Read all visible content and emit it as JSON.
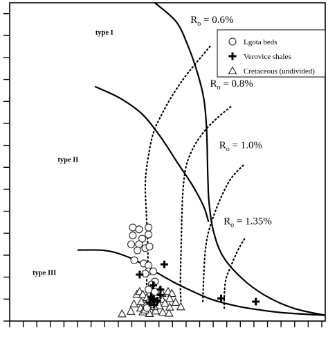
{
  "chart_data": {
    "type": "scatter",
    "title": "",
    "xlabel": "",
    "ylabel": "",
    "xlim": [
      0,
      100
    ],
    "ylim": [
      0,
      100
    ],
    "x_ticks": [
      0,
      4.3,
      8.6,
      12.9,
      17.2,
      21.5,
      25.8,
      30.1,
      34.4,
      38.7,
      43.0,
      47.3,
      51.6,
      55.9,
      60.2,
      64.5,
      68.8,
      73.1,
      77.4,
      81.7,
      86.0,
      90.3,
      94.6,
      98.9
    ],
    "y_ticks": [
      0,
      6.9,
      13.8,
      20.7,
      27.6,
      34.5,
      41.4,
      48.3,
      55.2,
      62.1,
      69.0,
      75.9,
      82.8,
      89.7,
      96.6
    ],
    "grid": false,
    "legend_position": "top-right",
    "legend": [
      {
        "label": "Lgota beds",
        "marker": "circle"
      },
      {
        "label": "Verovice shales",
        "marker": "cross"
      },
      {
        "label": "Cretaceous (undivided)",
        "marker": "triangle"
      }
    ],
    "region_labels": [
      {
        "text": "type I",
        "x": 30,
        "y": 90
      },
      {
        "text": "type II",
        "x": 18.5,
        "y": 50
      },
      {
        "text": "type III",
        "x": 11,
        "y": 14.5
      }
    ],
    "ro_labels": [
      {
        "main": "R",
        "sub": "o",
        "rest": " = 0.6%",
        "x": 57.3,
        "y": 93.7
      },
      {
        "main": "R",
        "sub": "o",
        "rest": " = 0.8%",
        "x": 63.5,
        "y": 73.6
      },
      {
        "main": "R",
        "sub": "o",
        "rest": " = 1.0%",
        "x": 66.4,
        "y": 54.2
      },
      {
        "main": "R",
        "sub": "o",
        "rest": " = 1.35%",
        "x": 67.8,
        "y": 30.4
      }
    ],
    "type_curves": [
      {
        "name": "type-I-curve",
        "points": [
          [
            46,
            100
          ],
          [
            52.8,
            94
          ],
          [
            56.5,
            86.5
          ],
          [
            59.5,
            78
          ],
          [
            61.5,
            70
          ],
          [
            62.3,
            62
          ],
          [
            62.6,
            54
          ],
          [
            62.8,
            45
          ],
          [
            63.2,
            37
          ],
          [
            64.5,
            28.5
          ],
          [
            67.5,
            20.5
          ],
          [
            73.5,
            13.5
          ],
          [
            81,
            8
          ],
          [
            90,
            4
          ],
          [
            100,
            1.8
          ]
        ]
      },
      {
        "name": "type-II-curve",
        "points": [
          [
            27,
            73.7
          ],
          [
            35,
            70
          ],
          [
            42,
            65
          ],
          [
            48,
            57.6
          ],
          [
            53,
            50
          ],
          [
            58,
            42.5
          ],
          [
            61.5,
            36
          ],
          [
            63,
            31.2
          ]
        ]
      },
      {
        "name": "type-III-curve",
        "points": [
          [
            21.5,
            22.3
          ],
          [
            30,
            22.2
          ],
          [
            36,
            20.7
          ],
          [
            42,
            18
          ],
          [
            47,
            15
          ],
          [
            52,
            12.2
          ],
          [
            58,
            9.3
          ],
          [
            64,
            6.8
          ],
          [
            72,
            4.7
          ],
          [
            80,
            3.4
          ],
          [
            88,
            2.5
          ],
          [
            100,
            1.8
          ]
        ]
      }
    ],
    "ro_curves": [
      {
        "name": "ro-0.6-curve",
        "points": [
          [
            63.5,
            86.3
          ],
          [
            59,
            81
          ],
          [
            55,
            76
          ],
          [
            51,
            70
          ],
          [
            47.5,
            63.6
          ],
          [
            45.5,
            59
          ],
          [
            44,
            52
          ],
          [
            43,
            44
          ],
          [
            43.2,
            36
          ],
          [
            43.6,
            28
          ],
          [
            43.8,
            20
          ],
          [
            43.4,
            12
          ],
          [
            43.2,
            4.1
          ]
        ]
      },
      {
        "name": "ro-0.8-curve",
        "points": [
          [
            70,
            67.3
          ],
          [
            66,
            64
          ],
          [
            62,
            60
          ],
          [
            58.5,
            55
          ],
          [
            56,
            49
          ],
          [
            55,
            42
          ],
          [
            54.6,
            34
          ],
          [
            54.4,
            26
          ],
          [
            54.2,
            18
          ],
          [
            54.1,
            10
          ],
          [
            54.4,
            4.1
          ]
        ]
      },
      {
        "name": "ro-1.0-curve",
        "points": [
          [
            74,
            48.9
          ],
          [
            70.3,
            45
          ],
          [
            67.5,
            40
          ],
          [
            65,
            34
          ],
          [
            63,
            28
          ],
          [
            62,
            22
          ],
          [
            61.5,
            14
          ],
          [
            61.2,
            6
          ]
        ]
      },
      {
        "name": "ro-1.35-curve",
        "points": [
          [
            74.4,
            25.8
          ],
          [
            72.2,
            22
          ],
          [
            70,
            17
          ],
          [
            68.5,
            13
          ],
          [
            68,
            8
          ],
          [
            68,
            4
          ]
        ]
      }
    ],
    "series": [
      {
        "name": "Lgota beds",
        "marker": "circle",
        "points": [
          [
            39,
            29.4
          ],
          [
            41,
            28.8
          ],
          [
            44,
            29.4
          ],
          [
            39,
            26.9
          ],
          [
            42,
            25.9
          ],
          [
            44,
            27.2
          ],
          [
            38.5,
            24.1
          ],
          [
            41,
            24.1
          ],
          [
            43,
            22.9
          ],
          [
            40.5,
            22.2
          ],
          [
            44.3,
            23.4
          ],
          [
            39.5,
            19.1
          ],
          [
            42.5,
            18.1
          ],
          [
            44,
            17.5
          ],
          [
            44,
            15.6
          ],
          [
            43,
            14.9
          ],
          [
            45.5,
            15.6
          ],
          [
            46,
            12.4
          ],
          [
            45,
            11.5
          ],
          [
            44,
            9.9
          ],
          [
            46,
            9.2
          ],
          [
            44.5,
            6.1
          ],
          [
            45.3,
            5.4
          ],
          [
            43.5,
            4.1
          ]
        ]
      },
      {
        "name": "Verovice shales",
        "marker": "cross",
        "points": [
          [
            49,
            17.8
          ],
          [
            41.2,
            14.6
          ],
          [
            45.5,
            11.2
          ],
          [
            47.8,
            9.9
          ],
          [
            47.8,
            8.2
          ],
          [
            44.8,
            7.6
          ],
          [
            45.3,
            6.9
          ],
          [
            44.3,
            5.8
          ],
          [
            45.8,
            5.1
          ],
          [
            46.8,
            6.4
          ],
          [
            67,
            7.1
          ],
          [
            78,
            6.1
          ]
        ]
      },
      {
        "name": "Cretaceous (undivided)",
        "marker": "triangle",
        "points": [
          [
            40.3,
            8.4
          ],
          [
            41.2,
            9.3
          ],
          [
            42.2,
            8.4
          ],
          [
            47.6,
            9.7
          ],
          [
            48.3,
            8.7
          ],
          [
            50.2,
            9.3
          ],
          [
            51.4,
            8.7
          ],
          [
            45.5,
            7.8
          ],
          [
            46.6,
            8.2
          ],
          [
            43.5,
            7.4
          ],
          [
            48.3,
            6.8
          ],
          [
            50.7,
            7.1
          ],
          [
            41.7,
            6.1
          ],
          [
            39.4,
            5.4
          ],
          [
            43.2,
            5.3
          ],
          [
            47.4,
            4.9
          ],
          [
            49.2,
            5.6
          ],
          [
            50.7,
            4.4
          ],
          [
            52.6,
            5.9
          ],
          [
            54.2,
            4.5
          ],
          [
            41.5,
            4.1
          ],
          [
            44.6,
            3.5
          ],
          [
            46.2,
            3.2
          ],
          [
            48.5,
            2.8
          ],
          [
            50.5,
            2.5
          ],
          [
            38.4,
            3.1
          ],
          [
            35.6,
            2.3
          ],
          [
            44.3,
            2.4
          ],
          [
            42.2,
            2.9
          ],
          [
            45.8,
            4.6
          ],
          [
            42.9,
            3.5
          ]
        ]
      }
    ]
  }
}
